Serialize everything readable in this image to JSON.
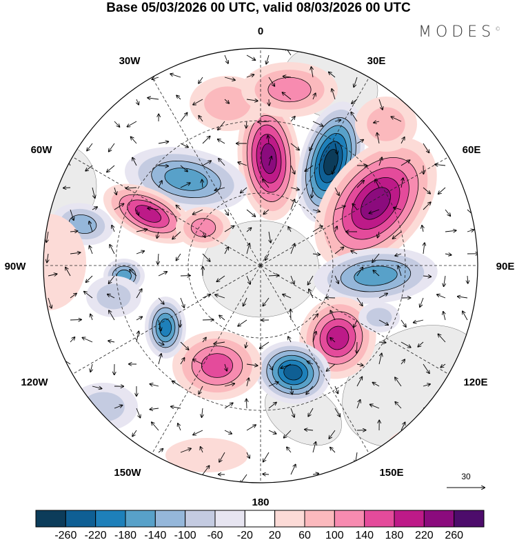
{
  "title": "Base 05/03/2026 00 UTC, valid 08/03/2026 00 UTC",
  "logo": "MODES",
  "logo_mark": "©",
  "longitude_labels": {
    "lon_0": "0",
    "lon_30e": "30E",
    "lon_60e": "60E",
    "lon_90e": "90E",
    "lon_120e": "120E",
    "lon_150e": "150E",
    "lon_180": "180",
    "lon_150w": "150W",
    "lon_120w": "120W",
    "lon_90w": "90W",
    "lon_60w": "60W",
    "lon_30w": "30W"
  },
  "vector_reference": "30",
  "colorbar": {
    "labels": [
      "-260",
      "-220",
      "-180",
      "-140",
      "-100",
      "-60",
      "-20",
      "20",
      "60",
      "100",
      "140",
      "180",
      "220",
      "260"
    ],
    "colors": [
      "#0c3c5a",
      "#0f5f94",
      "#1e80ba",
      "#58a1c9",
      "#95b7da",
      "#c4cbe1",
      "#e7e5f1",
      "#ffffff",
      "#fcdbd7",
      "#fbb9bd",
      "#f78bb0",
      "#e44b9b",
      "#bd1a88",
      "#8b0b7d",
      "#4d0c6b"
    ]
  }
}
